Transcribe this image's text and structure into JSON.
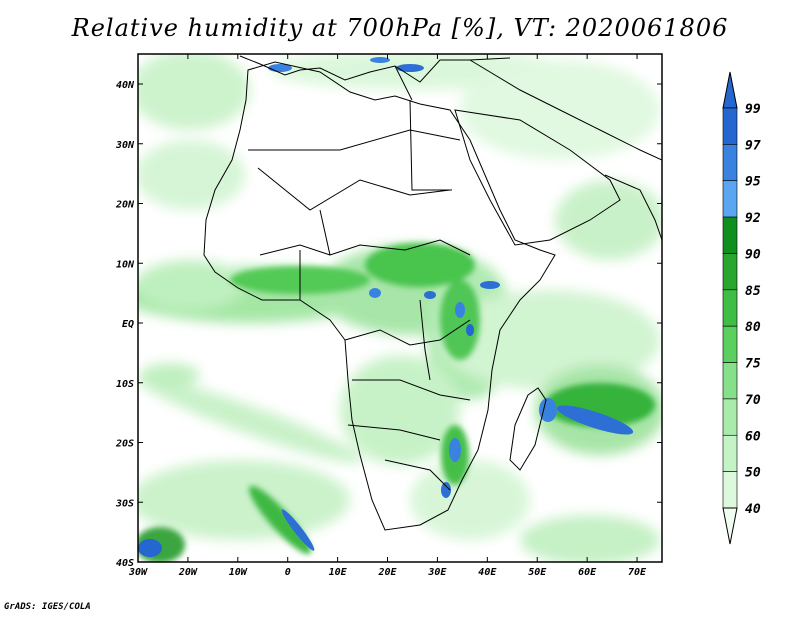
{
  "title": "Relative humidity at 700hPa [%], VT: 2020061806",
  "footer": "GrADS: IGES/COLA",
  "map": {
    "variable": "Relative humidity",
    "level": "700hPa",
    "units": "%",
    "valid_time": "2020061806",
    "lon_labels": [
      "30W",
      "20W",
      "10W",
      "0",
      "10E",
      "20E",
      "30E",
      "40E",
      "50E",
      "60E",
      "70E"
    ],
    "lat_labels": [
      "40N",
      "30N",
      "20N",
      "10N",
      "EQ",
      "10S",
      "20S",
      "30S",
      "40S"
    ]
  },
  "colorbar": {
    "levels": [
      "99",
      "97",
      "95",
      "92",
      "90",
      "85",
      "80",
      "75",
      "70",
      "60",
      "50",
      "40"
    ],
    "colors": [
      "#2566d0",
      "#3a82e0",
      "#5aa6f0",
      "#0f8f1e",
      "#2aa52e",
      "#3fbd44",
      "#5cd05e",
      "#86e08a",
      "#a8ebaa",
      "#c4f3c5",
      "#dcf9dd",
      "#f2fdf2"
    ]
  }
}
